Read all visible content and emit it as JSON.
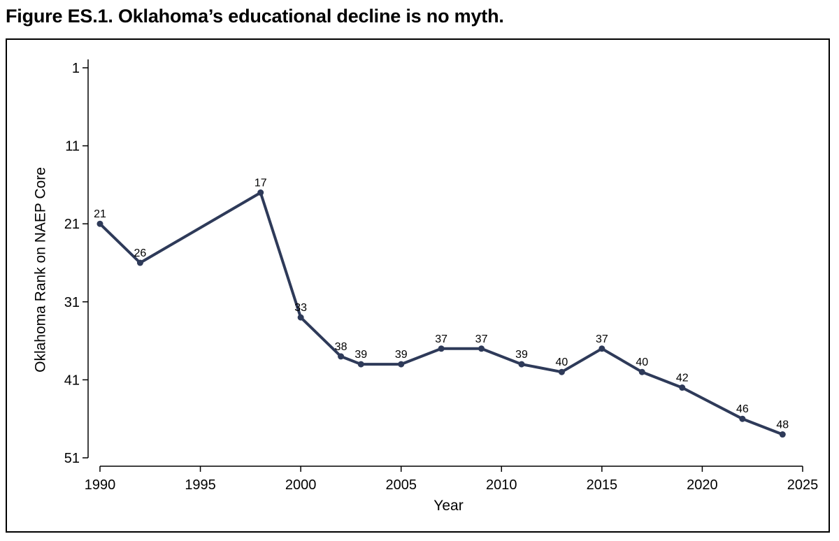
{
  "title": "Figure ES.1. Oklahoma’s educational decline is no myth.",
  "chart_data": {
    "type": "line",
    "title": "Figure ES.1. Oklahoma’s educational decline is no myth.",
    "xlabel": "Year",
    "ylabel": "Oklahoma Rank on NAEP Core",
    "xlim": [
      1990,
      2025
    ],
    "ylim": [
      51,
      1
    ],
    "y_inverted": true,
    "x_ticks": [
      1990,
      1995,
      2000,
      2005,
      2010,
      2015,
      2020,
      2025
    ],
    "y_ticks": [
      1,
      11,
      21,
      31,
      41,
      51
    ],
    "grid": false,
    "line_color": "#2e3a59",
    "series": [
      {
        "name": "Oklahoma Rank",
        "x": [
          1990,
          1992,
          1998,
          2000,
          2002,
          2003,
          2005,
          2007,
          2009,
          2011,
          2013,
          2015,
          2017,
          2019,
          2022,
          2024
        ],
        "values": [
          21,
          26,
          17,
          33,
          38,
          39,
          39,
          37,
          37,
          39,
          40,
          37,
          40,
          42,
          46,
          48
        ],
        "labels": [
          "21",
          "26",
          "17",
          "33",
          "38",
          "39",
          "39",
          "37",
          "37",
          "39",
          "40",
          "37",
          "40",
          "42",
          "46",
          "48"
        ]
      }
    ]
  }
}
